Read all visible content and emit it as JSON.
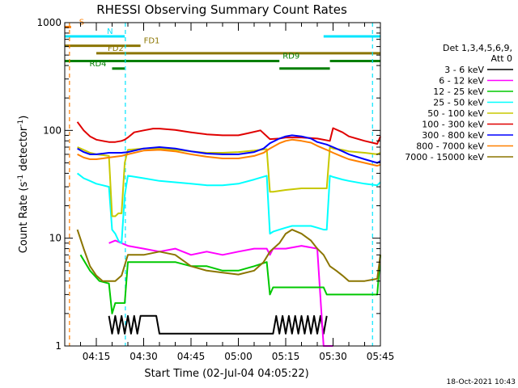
{
  "chart_data": {
    "type": "line",
    "title": "RHESSI Observing Summary Count Rates",
    "xlabel": "Start Time (02-Jul-04 04:05:22)",
    "ylabel_parts": [
      "Count Rate (s",
      "-1",
      " detector",
      "-1",
      ")"
    ],
    "yscale": "log",
    "ylim": [
      1,
      1000
    ],
    "y_ticks": [
      {
        "value": 1,
        "label": "1"
      },
      {
        "value": 10,
        "label": "10"
      },
      {
        "value": 100,
        "label": "100"
      },
      {
        "value": 1000,
        "label": "1000"
      }
    ],
    "xlim_min": [
      0,
      100
    ],
    "x_ticks": [
      {
        "value": 10,
        "label": "04:15"
      },
      {
        "value": 25,
        "label": "04:30"
      },
      {
        "value": 40,
        "label": "04:45"
      },
      {
        "value": 55,
        "label": "05:00"
      },
      {
        "value": 70,
        "label": "05:15"
      },
      {
        "value": 85,
        "label": "05:30"
      },
      {
        "value": 100,
        "label": "05:45"
      }
    ],
    "legend_header": [
      "Det 1,3,4,5,6,9,",
      "Att 0"
    ],
    "footer_date": "18-Oct-2021 10:43",
    "flags": [
      {
        "label": "S",
        "color": "#ff7f00",
        "y": 910,
        "segments": [
          [
            0,
            2
          ]
        ]
      },
      {
        "label": "N",
        "color": "#00e5ff",
        "y": 745,
        "segments": [
          [
            0,
            19
          ],
          [
            82,
            100
          ]
        ]
      },
      {
        "label": "FD1",
        "color": "#8b7500",
        "y": 610,
        "segments": [
          [
            0,
            24
          ]
        ]
      },
      {
        "label": "FD2",
        "color": "#8b7500",
        "y": 520,
        "segments": [
          [
            10,
            100
          ]
        ]
      },
      {
        "label": "RD9",
        "color": "#007f00",
        "y": 440,
        "segments": [
          [
            0,
            68
          ],
          [
            84,
            100
          ]
        ]
      },
      {
        "label": "RD4",
        "color": "#007f00",
        "y": 375,
        "segments": [
          [
            15,
            19
          ],
          [
            68,
            84
          ]
        ]
      }
    ],
    "vlines": [
      {
        "x": 1.5,
        "color": "#ff7f00"
      },
      {
        "x": 19.2,
        "color": "#00e5ff"
      },
      {
        "x": 97.5,
        "color": "#00e5ff"
      }
    ],
    "series": [
      {
        "name": "3 - 6 keV",
        "color": "#000000",
        "x": [
          14,
          15,
          16,
          17,
          18,
          19,
          20,
          21,
          22,
          23,
          24,
          29,
          30,
          66,
          67,
          68,
          69,
          70,
          71,
          72,
          73,
          74,
          75,
          76,
          77,
          78,
          79,
          80,
          81,
          82,
          83
        ],
        "y": [
          1.9,
          1.3,
          1.9,
          1.3,
          1.9,
          1.3,
          1.9,
          1.3,
          1.9,
          1.3,
          1.9,
          1.9,
          1.3,
          1.3,
          1.9,
          1.3,
          1.9,
          1.3,
          1.9,
          1.3,
          1.9,
          1.3,
          1.9,
          1.3,
          1.9,
          1.3,
          1.9,
          1.3,
          1.9,
          1.3,
          1.9
        ]
      },
      {
        "name": "6 - 12 keV",
        "color": "#ff00ff",
        "x": [
          14,
          16,
          20,
          25,
          30,
          35,
          40,
          45,
          50,
          55,
          60,
          64,
          65,
          66,
          70,
          75,
          80,
          82,
          84,
          85
        ],
        "y": [
          9,
          9.5,
          8.5,
          8,
          7.5,
          8,
          7,
          7.5,
          7,
          7.5,
          8,
          8,
          7,
          8,
          8,
          8.5,
          8,
          1,
          1,
          1
        ]
      },
      {
        "name": "12 - 25 keV",
        "color": "#00c800",
        "x": [
          5,
          8,
          11,
          14,
          15,
          16,
          17,
          18,
          19,
          20,
          25,
          30,
          35,
          40,
          45,
          50,
          55,
          60,
          64,
          65,
          66,
          70,
          75,
          80,
          82,
          83,
          84,
          88,
          90,
          95,
          99,
          100
        ],
        "y": [
          7,
          5,
          4,
          3.8,
          2,
          2.5,
          2.5,
          2.5,
          2.5,
          6,
          6,
          6,
          6,
          5.5,
          5.5,
          5,
          5,
          5.5,
          6,
          3,
          3.5,
          3.5,
          3.5,
          3.5,
          3.5,
          3,
          3,
          3,
          3,
          3,
          3,
          7
        ]
      },
      {
        "name": "25 - 50 keV",
        "color": "#00ffff",
        "x": [
          4,
          6,
          8,
          10,
          12,
          14,
          15,
          16,
          17,
          18,
          19,
          20,
          25,
          30,
          35,
          40,
          45,
          50,
          55,
          60,
          64,
          65,
          66,
          68,
          70,
          72,
          75,
          78,
          80,
          82,
          83,
          84,
          85,
          88,
          90,
          95,
          99,
          100
        ],
        "y": [
          40,
          36,
          34,
          32,
          31,
          30,
          12,
          11,
          9.5,
          9,
          25,
          38,
          36,
          34,
          33,
          32,
          31,
          31,
          32,
          35,
          38,
          11,
          11.5,
          12,
          12.5,
          13,
          13,
          13,
          12.5,
          12,
          12,
          38,
          37,
          35,
          34,
          32,
          31,
          33
        ]
      },
      {
        "name": "50 - 100 keV",
        "color": "#c8c800",
        "x": [
          4,
          6,
          8,
          10,
          12,
          14,
          15,
          16,
          17,
          18,
          19,
          20,
          25,
          30,
          35,
          40,
          45,
          50,
          55,
          60,
          64,
          65,
          66,
          70,
          75,
          80,
          83,
          84,
          85,
          88,
          90,
          95,
          99,
          100
        ],
        "y": [
          70,
          66,
          62,
          60,
          59,
          58,
          16,
          16,
          17,
          17,
          50,
          66,
          68,
          68,
          66,
          64,
          62,
          62,
          63,
          65,
          67,
          27,
          27,
          28,
          29,
          29,
          29,
          70,
          68,
          66,
          64,
          62,
          60,
          62
        ]
      },
      {
        "name": "100 - 300 keV",
        "color": "#e00000",
        "x": [
          4,
          6,
          8,
          10,
          12,
          14,
          16,
          18,
          19,
          20,
          22,
          25,
          28,
          30,
          35,
          40,
          45,
          50,
          55,
          58,
          62,
          65,
          68,
          70,
          75,
          80,
          84,
          85,
          88,
          90,
          95,
          99,
          100
        ],
        "y": [
          120,
          100,
          88,
          82,
          80,
          78,
          78,
          80,
          82,
          86,
          96,
          100,
          104,
          104,
          101,
          96,
          92,
          90,
          90,
          94,
          100,
          83,
          84,
          86,
          86,
          84,
          80,
          105,
          96,
          88,
          80,
          75,
          88
        ]
      },
      {
        "name": "300 - 800 keV",
        "color": "#0000ff",
        "x": [
          4,
          6,
          8,
          10,
          12,
          14,
          16,
          18,
          20,
          25,
          30,
          35,
          40,
          45,
          50,
          55,
          60,
          63,
          65,
          68,
          70,
          72,
          75,
          78,
          80,
          83,
          85,
          88,
          90,
          95,
          99,
          100
        ],
        "y": [
          68,
          63,
          60,
          60,
          61,
          62,
          62,
          62,
          63,
          68,
          70,
          68,
          64,
          61,
          60,
          60,
          63,
          68,
          76,
          84,
          88,
          90,
          88,
          84,
          78,
          74,
          70,
          64,
          60,
          54,
          50,
          52
        ]
      },
      {
        "name": "800 - 7000 keV",
        "color": "#ff8000",
        "x": [
          4,
          6,
          8,
          10,
          12,
          14,
          16,
          18,
          20,
          25,
          30,
          35,
          40,
          45,
          50,
          55,
          60,
          63,
          65,
          68,
          70,
          72,
          75,
          78,
          80,
          83,
          85,
          88,
          90,
          95,
          99,
          100
        ],
        "y": [
          60,
          56,
          54,
          54,
          55,
          56,
          57,
          58,
          60,
          65,
          66,
          64,
          60,
          57,
          55,
          55,
          58,
          62,
          68,
          76,
          80,
          82,
          80,
          77,
          72,
          66,
          62,
          57,
          54,
          50,
          47,
          48
        ]
      },
      {
        "name": "7000 - 15000 keV",
        "color": "#8b7500",
        "x": [
          4,
          6,
          8,
          10,
          12,
          14,
          16,
          18,
          20,
          25,
          30,
          35,
          40,
          45,
          50,
          55,
          60,
          63,
          65,
          68,
          70,
          72,
          75,
          78,
          80,
          82,
          84,
          86,
          88,
          90,
          92,
          95,
          99,
          100
        ],
        "y": [
          12,
          8,
          5.5,
          4.5,
          4,
          4,
          4,
          4.5,
          7,
          7,
          7.5,
          7,
          5.5,
          5,
          4.8,
          4.6,
          5,
          6,
          7.5,
          9,
          11,
          12,
          11,
          9.5,
          8,
          7,
          5.5,
          5,
          4.5,
          4,
          4,
          4,
          4.2,
          7
        ]
      }
    ]
  }
}
